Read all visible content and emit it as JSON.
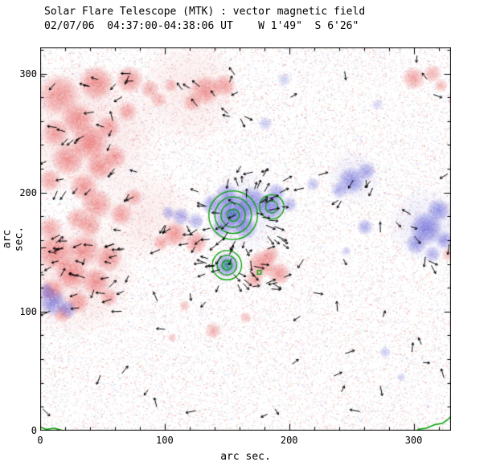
{
  "chart_data": {
    "type": "heatmap",
    "title": "Solar Flare Telescope (MTK) : vector magnetic field",
    "subtitle": "02/07/06  04:37:00-04:38:06 UT    W 1'49\"  S 6'26\"",
    "xlabel": "arc sec.",
    "ylabel": "arc sec.",
    "xlim": [
      0,
      330
    ],
    "ylim": [
      0,
      322
    ],
    "xticks": [
      "0",
      "100",
      "200",
      "300"
    ],
    "yticks": [
      "0",
      "100",
      "200",
      "300"
    ],
    "xtick_values": [
      0,
      100,
      200,
      300
    ],
    "ytick_values": [
      0,
      100,
      200,
      300
    ],
    "minor_tick_step": 20,
    "colors": {
      "positive": "#e13737",
      "negative": "#4646d2",
      "contour": "#00a000",
      "arrow": "#000000",
      "background": "#ffffff"
    },
    "noise": {
      "seed": 42,
      "colored_count": 26000,
      "white_count": 20000
    },
    "pos_blobs": [
      [
        40,
        250,
        60,
        0.13
      ],
      [
        28,
        130,
        52,
        0.13
      ],
      [
        120,
        285,
        45,
        0.1
      ],
      [
        85,
        180,
        40,
        0.1
      ],
      [
        15,
        282,
        18,
        0.5
      ],
      [
        45,
        292,
        15,
        0.55
      ],
      [
        72,
        295,
        12,
        0.5
      ],
      [
        88,
        287,
        8,
        0.4
      ],
      [
        30,
        262,
        14,
        0.5
      ],
      [
        12,
        250,
        12,
        0.45
      ],
      [
        40,
        242,
        16,
        0.55
      ],
      [
        22,
        228,
        14,
        0.5
      ],
      [
        48,
        222,
        12,
        0.5
      ],
      [
        8,
        210,
        10,
        0.45
      ],
      [
        35,
        205,
        12,
        0.5
      ],
      [
        60,
        230,
        10,
        0.45
      ],
      [
        55,
        255,
        10,
        0.45
      ],
      [
        70,
        268,
        9,
        0.4
      ],
      [
        95,
        278,
        7,
        0.35
      ],
      [
        105,
        290,
        6,
        0.35
      ],
      [
        133,
        286,
        13,
        0.5
      ],
      [
        148,
        290,
        10,
        0.45
      ],
      [
        122,
        276,
        8,
        0.4
      ],
      [
        45,
        190,
        14,
        0.5
      ],
      [
        65,
        182,
        10,
        0.45
      ],
      [
        30,
        178,
        10,
        0.45
      ],
      [
        75,
        196,
        8,
        0.4
      ],
      [
        12,
        150,
        16,
        0.55
      ],
      [
        35,
        152,
        14,
        0.5
      ],
      [
        55,
        145,
        12,
        0.5
      ],
      [
        25,
        132,
        14,
        0.55
      ],
      [
        45,
        125,
        12,
        0.5
      ],
      [
        10,
        118,
        10,
        0.5
      ],
      [
        30,
        108,
        10,
        0.45
      ],
      [
        55,
        112,
        8,
        0.4
      ],
      [
        18,
        98,
        8,
        0.4
      ],
      [
        40,
        172,
        10,
        0.45
      ],
      [
        8,
        170,
        10,
        0.45
      ],
      [
        108,
        165,
        11,
        0.5
      ],
      [
        125,
        158,
        10,
        0.5
      ],
      [
        97,
        158,
        7,
        0.4
      ],
      [
        178,
        140,
        12,
        0.55
      ],
      [
        192,
        132,
        10,
        0.5
      ],
      [
        172,
        127,
        8,
        0.45
      ],
      [
        185,
        148,
        8,
        0.4
      ],
      [
        139,
        84,
        7,
        0.4
      ],
      [
        165,
        95,
        5,
        0.35
      ],
      [
        116,
        105,
        5,
        0.3
      ],
      [
        106,
        78,
        4,
        0.3
      ],
      [
        300,
        296,
        10,
        0.45
      ],
      [
        315,
        300,
        8,
        0.4
      ],
      [
        322,
        290,
        6,
        0.35
      ],
      [
        328,
        148,
        6,
        0.35
      ]
    ],
    "neg_blobs": [
      [
        310,
        172,
        32,
        0.12
      ],
      [
        252,
        212,
        24,
        0.1
      ],
      [
        165,
        185,
        35,
        0.1
      ],
      [
        155,
        182,
        17,
        0.75
      ],
      [
        170,
        192,
        13,
        0.6
      ],
      [
        185,
        188,
        12,
        0.65
      ],
      [
        150,
        198,
        10,
        0.5
      ],
      [
        138,
        190,
        9,
        0.5
      ],
      [
        165,
        170,
        10,
        0.5
      ],
      [
        190,
        200,
        8,
        0.45
      ],
      [
        145,
        170,
        8,
        0.45
      ],
      [
        200,
        190,
        7,
        0.4
      ],
      [
        113,
        180,
        8,
        0.45
      ],
      [
        125,
        176,
        7,
        0.45
      ],
      [
        103,
        183,
        6,
        0.4
      ],
      [
        150,
        139,
        11,
        0.7
      ],
      [
        10,
        108,
        12,
        0.6
      ],
      [
        22,
        102,
        8,
        0.5
      ],
      [
        5,
        118,
        7,
        0.45
      ],
      [
        310,
        170,
        14,
        0.65
      ],
      [
        320,
        185,
        10,
        0.55
      ],
      [
        302,
        157,
        9,
        0.5
      ],
      [
        325,
        160,
        8,
        0.5
      ],
      [
        315,
        148,
        7,
        0.4
      ],
      [
        250,
        210,
        12,
        0.55
      ],
      [
        262,
        218,
        8,
        0.45
      ],
      [
        240,
        202,
        7,
        0.4
      ],
      [
        261,
        171,
        7,
        0.45
      ],
      [
        246,
        151,
        4,
        0.3
      ],
      [
        181,
        258,
        6,
        0.3
      ],
      [
        219,
        207,
        6,
        0.35
      ],
      [
        277,
        66,
        5,
        0.3
      ],
      [
        290,
        45,
        4,
        0.25
      ],
      [
        196,
        295,
        6,
        0.25
      ],
      [
        271,
        274,
        5,
        0.25
      ]
    ],
    "green_cores": [
      [
        150,
        139,
        6,
        0.55
      ],
      [
        155,
        182,
        4,
        0.3
      ]
    ],
    "contours": {
      "circles": [
        {
          "x": 155,
          "y": 181,
          "radii": [
            5,
            10,
            15,
            20
          ]
        },
        {
          "x": 186,
          "y": 188,
          "radii": [
            5,
            10
          ]
        },
        {
          "x": 150,
          "y": 139,
          "radii": [
            4,
            8,
            12
          ]
        }
      ],
      "square": {
        "x": 176,
        "y": 133,
        "s": 3
      },
      "paths": [
        [
          [
            303,
            1
          ],
          [
            310,
            2
          ],
          [
            317,
            5
          ],
          [
            323,
            6
          ],
          [
            327,
            9
          ],
          [
            330,
            12
          ]
        ],
        [
          [
            0,
            3
          ],
          [
            5,
            1
          ],
          [
            11,
            2
          ],
          [
            15,
            1
          ],
          [
            18,
            0
          ]
        ]
      ]
    },
    "arrow_regions": [
      {
        "type": "uniform",
        "x0": 2,
        "x1": 78,
        "y0": 195,
        "y1": 302,
        "count": 30,
        "angle": 205,
        "jitter": 45
      },
      {
        "type": "uniform",
        "x0": 112,
        "x1": 162,
        "y0": 266,
        "y1": 300,
        "count": 8,
        "angle": 160,
        "jitter": 50
      },
      {
        "type": "uniform",
        "x0": 0,
        "x1": 68,
        "y0": 95,
        "y1": 172,
        "count": 32,
        "angle": 185,
        "jitter": 25
      },
      {
        "type": "uniform",
        "x0": 92,
        "x1": 138,
        "y0": 148,
        "y1": 176,
        "count": 8,
        "angle": 215,
        "jitter": 40
      },
      {
        "type": "uniform",
        "x0": 163,
        "x1": 207,
        "y0": 116,
        "y1": 156,
        "count": 10,
        "angle": -25,
        "jitter": 50
      },
      {
        "type": "uniform",
        "x0": 293,
        "x1": 329,
        "y0": 138,
        "y1": 200,
        "count": 6,
        "angle": -60,
        "jitter": 45
      },
      {
        "type": "uniform",
        "x0": 236,
        "x1": 270,
        "y0": 193,
        "y1": 228,
        "count": 5,
        "angle": -95,
        "jitter": 55
      },
      {
        "type": "radial",
        "cx": 165,
        "cy": 183,
        "rmin": 8,
        "rmax": 42,
        "count": 44
      },
      {
        "type": "radial",
        "cx": 150,
        "cy": 138,
        "rmin": 6,
        "rmax": 22,
        "count": 16
      }
    ],
    "scatter_arrows": {
      "count": 60,
      "seed": 9,
      "len": 10
    }
  }
}
